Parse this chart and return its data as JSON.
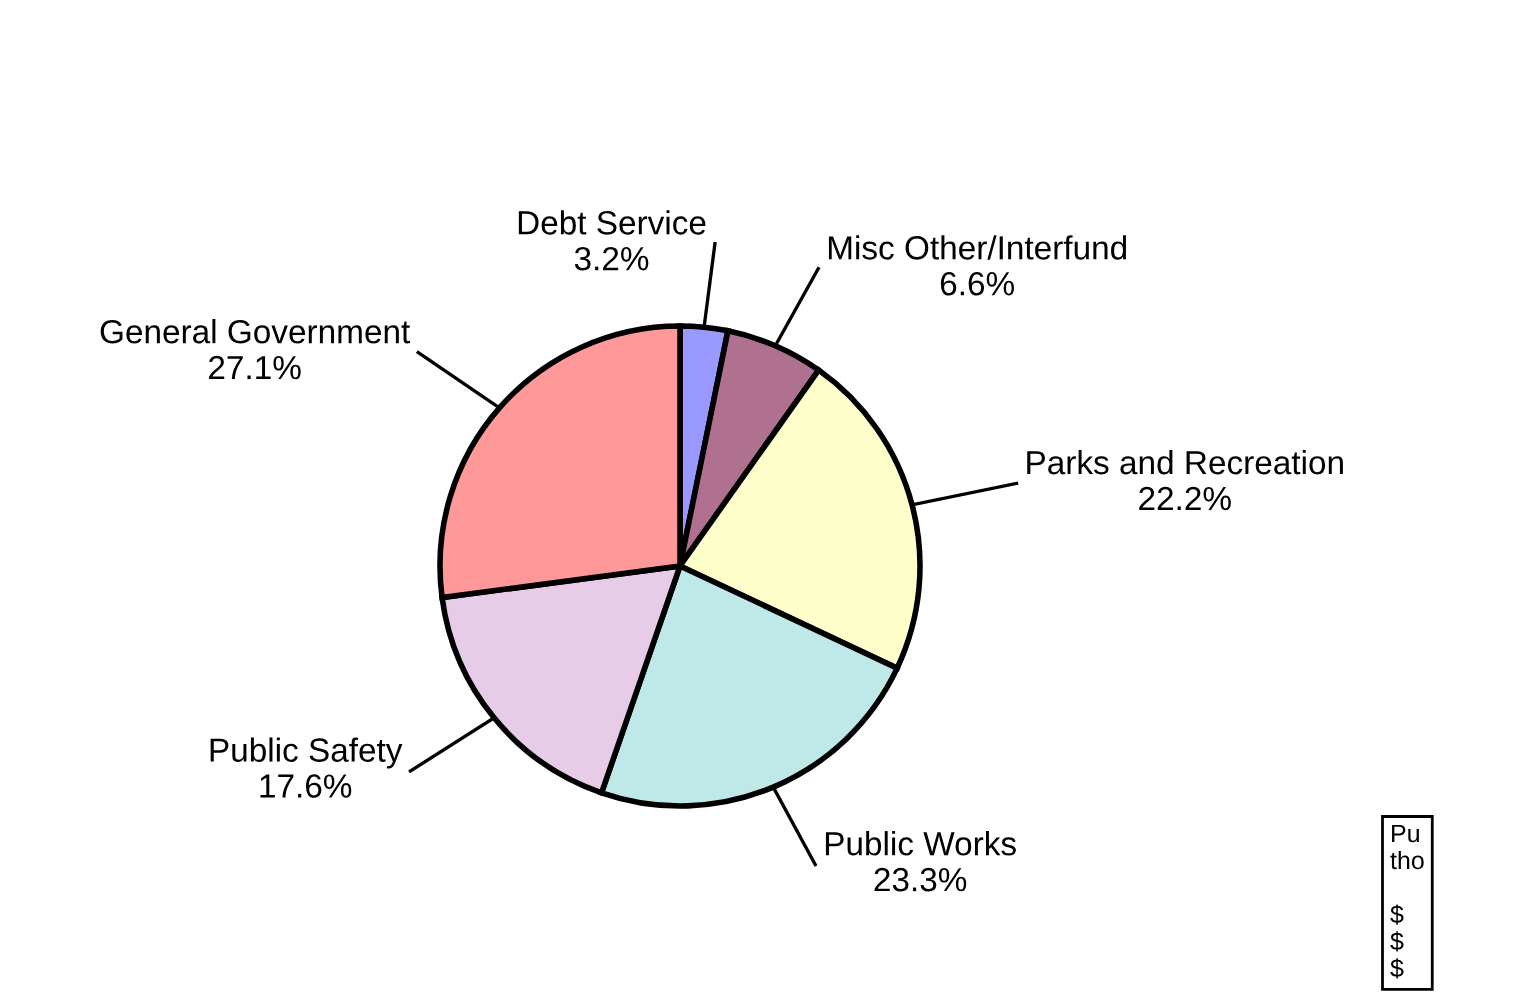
{
  "chart_data": {
    "type": "pie",
    "categories": [
      "Debt Service",
      "Misc Other/Interfund",
      "Parks and Recreation",
      "Public Works",
      "Public Safety",
      "General Government"
    ],
    "values": [
      3.2,
      6.6,
      22.2,
      23.3,
      17.6,
      27.1
    ],
    "value_labels": [
      "3.2%",
      "6.6%",
      "22.2%",
      "23.3%",
      "17.6%",
      "27.1%"
    ],
    "colors": [
      "#9999ff",
      "#b07090",
      "#ffffcc",
      "#bfe8e8",
      "#e6cce6",
      "#ff9999"
    ],
    "annotations": [
      "Pu\ntho\n\n$\n$\n$"
    ],
    "legend": false
  }
}
